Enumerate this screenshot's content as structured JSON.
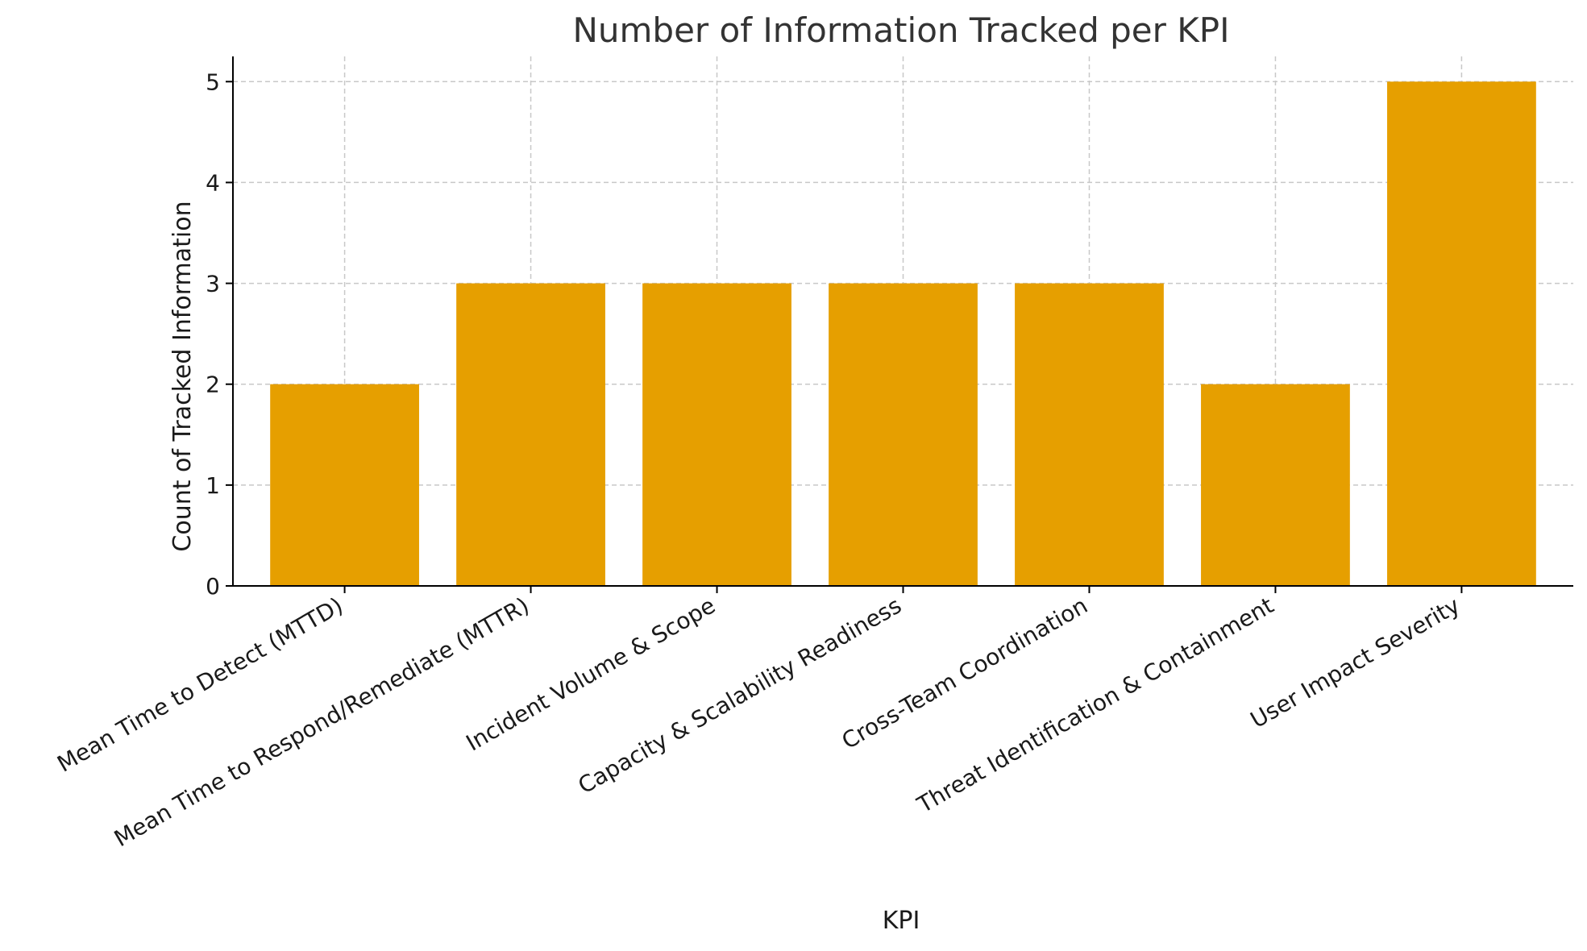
{
  "chart_data": {
    "type": "bar",
    "title": "Number of Information Tracked per KPI",
    "xlabel": "KPI",
    "ylabel": "Count of Tracked Information",
    "categories": [
      "Mean Time to Detect (MTTD)",
      "Mean Time to Respond/Remediate (MTTR)",
      "Incident Volume & Scope",
      "Capacity & Scalability Readiness",
      "Cross-Team Coordination",
      "Threat Identification & Containment",
      "User Impact Severity"
    ],
    "values": [
      2,
      3,
      3,
      3,
      3,
      2,
      5
    ],
    "ylim": [
      0,
      5.25
    ],
    "yticks": [
      0,
      1,
      2,
      3,
      4,
      5
    ],
    "grid": true,
    "bar_color": "#E69F00",
    "grid_color": "#c8c8c8",
    "axis_color": "#000000"
  }
}
